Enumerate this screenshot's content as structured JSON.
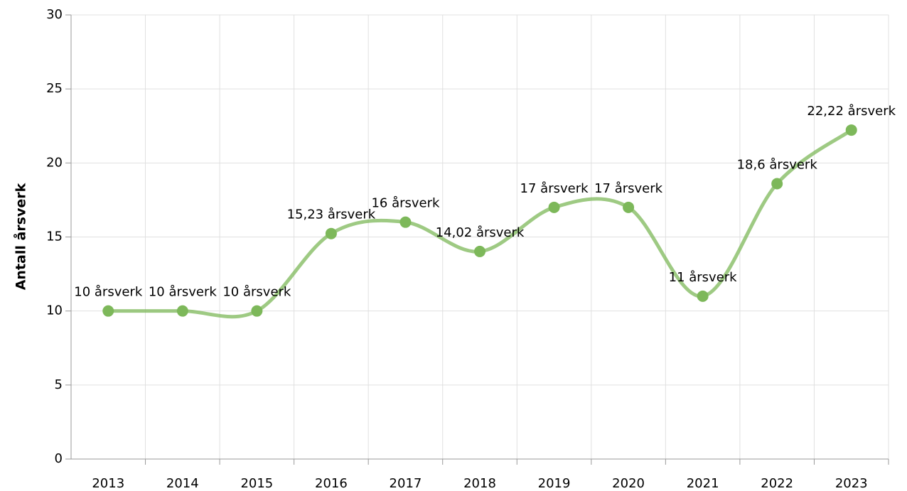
{
  "chart_data": {
    "type": "line",
    "y_label": "Antall årsverk",
    "categories": [
      "2013",
      "2014",
      "2015",
      "2016",
      "2017",
      "2018",
      "2019",
      "2020",
      "2021",
      "2022",
      "2023"
    ],
    "series": [
      {
        "name": "Årsverk",
        "color": "#7db85a",
        "values": [
          10,
          10,
          10,
          15.23,
          16,
          14.02,
          17,
          17,
          11,
          18.6,
          22.22
        ],
        "value_labels": [
          "10 årsverk",
          "10 årsverk",
          "10 årsverk",
          "15,23 årsverk",
          "16 årsverk",
          "14,02 årsverk",
          "17 årsverk",
          "17 årsverk",
          "11 årsverk",
          "18,6 årsverk",
          "22,22 årsverk"
        ]
      }
    ],
    "ylim": [
      0,
      30
    ],
    "yticks": [
      0,
      5,
      10,
      15,
      20,
      25,
      30
    ],
    "grid": true
  }
}
